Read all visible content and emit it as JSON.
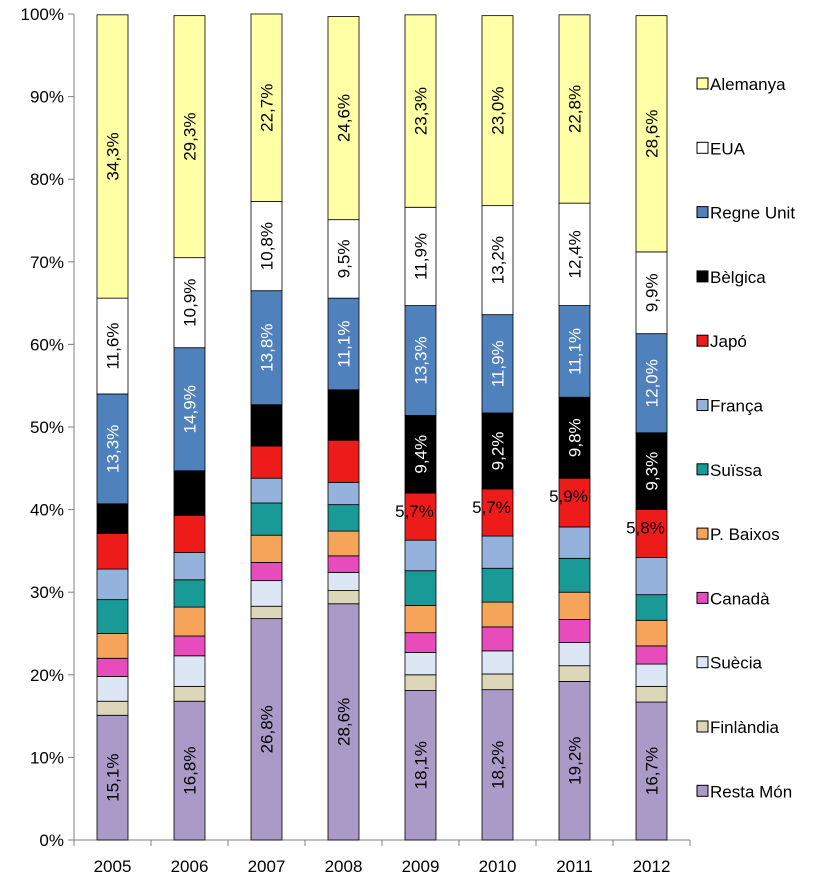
{
  "chart_data": {
    "type": "bar",
    "stacked": "percent",
    "categories": [
      "2005",
      "2006",
      "2007",
      "2008",
      "2009",
      "2010",
      "2011",
      "2012"
    ],
    "ylim": [
      0,
      100
    ],
    "y_ticks": [
      "0%",
      "10%",
      "20%",
      "30%",
      "40%",
      "50%",
      "60%",
      "70%",
      "80%",
      "90%",
      "100%"
    ],
    "grid": false,
    "legend_position": "right",
    "series": [
      {
        "name": "Resta Món",
        "color": "#aa9ac8",
        "values": [
          15.1,
          16.8,
          26.8,
          28.6,
          18.1,
          18.2,
          19.2,
          16.7
        ],
        "labels": [
          "15,1%",
          "16,8%",
          "26,8%",
          "28,6%",
          "18,1%",
          "18,2%",
          "19,2%",
          "16,7%"
        ]
      },
      {
        "name": "Finlàndia",
        "color": "#dcd7b8",
        "values": [
          1.7,
          1.8,
          1.5,
          1.6,
          1.9,
          1.9,
          1.9,
          1.9
        ],
        "labels": null
      },
      {
        "name": "Suècia",
        "color": "#dde6f4",
        "values": [
          3.0,
          3.7,
          3.1,
          2.2,
          2.7,
          2.8,
          2.8,
          2.7
        ],
        "labels": null
      },
      {
        "name": "Canadà",
        "color": "#e84cbc",
        "values": [
          2.2,
          2.4,
          2.2,
          2.0,
          2.4,
          2.9,
          2.8,
          2.2
        ],
        "labels": null
      },
      {
        "name": "P. Baixos",
        "color": "#f5a45a",
        "values": [
          3.0,
          3.5,
          3.3,
          3.0,
          3.3,
          3.0,
          3.3,
          3.1
        ],
        "labels": null
      },
      {
        "name": "Suïssa",
        "color": "#1a9a96",
        "values": [
          4.1,
          3.3,
          3.9,
          3.2,
          4.2,
          4.1,
          4.1,
          3.1
        ],
        "labels": null
      },
      {
        "name": "França",
        "color": "#94b2dc",
        "values": [
          3.7,
          3.3,
          3.0,
          2.7,
          3.7,
          3.9,
          3.8,
          4.5
        ],
        "labels": null
      },
      {
        "name": "Japó",
        "color": "#ee1b1b",
        "values": [
          4.3,
          4.5,
          3.9,
          5.1,
          5.7,
          5.7,
          5.9,
          5.8
        ],
        "labels": [
          null,
          null,
          null,
          null,
          "5,7%",
          "5,7%",
          "5,9%",
          "5,8%"
        ]
      },
      {
        "name": "Bèlgica",
        "color": "#000000",
        "values": [
          3.6,
          5.4,
          5.0,
          6.1,
          9.4,
          9.2,
          9.8,
          9.3
        ],
        "labels": [
          null,
          null,
          null,
          null,
          "9,4%",
          "9,2%",
          "9,8%",
          "9,3%"
        ]
      },
      {
        "name": "Regne Unit",
        "color": "#4f81bd",
        "values": [
          13.3,
          14.9,
          13.8,
          11.1,
          13.3,
          11.9,
          11.1,
          12.0
        ],
        "labels": [
          "13,3%",
          "14,9%",
          "13,8%",
          "11,1%",
          "13,3%",
          "11,9%",
          "11,1%",
          "12,0%"
        ]
      },
      {
        "name": "EUA",
        "color": "#ffffff",
        "values": [
          11.6,
          10.9,
          10.8,
          9.5,
          11.9,
          13.2,
          12.4,
          9.9
        ],
        "labels": [
          "11,6%",
          "10,9%",
          "10,8%",
          "9,5%",
          "11,9%",
          "13,2%",
          "12,4%",
          "9,9%"
        ]
      },
      {
        "name": "Alemanya",
        "color": "#ffffa6",
        "values": [
          34.3,
          29.3,
          22.7,
          24.6,
          23.3,
          23.0,
          22.8,
          28.6
        ],
        "labels": [
          "34,3%",
          "29,3%",
          "22,7%",
          "24,6%",
          "23,3%",
          "23,0%",
          "22,8%",
          "28,6%"
        ]
      }
    ]
  }
}
